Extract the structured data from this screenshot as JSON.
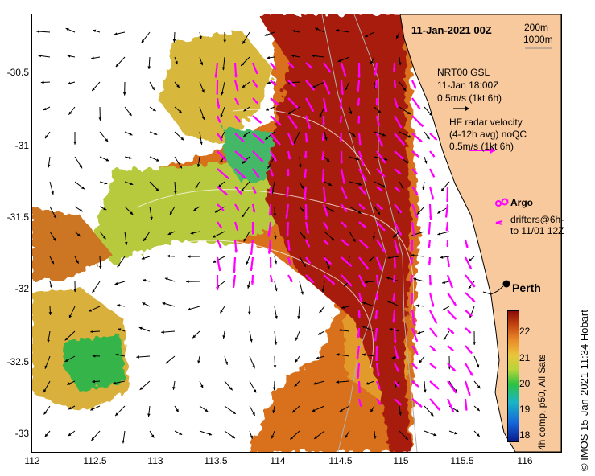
{
  "date_label": "11-Jan-2021 00Z",
  "isobath_legend": [
    "200m",
    "1000m"
  ],
  "gsl_legend": [
    "NRT00 GSL",
    "11-Jan 18:00Z",
    "0.5m/s (1kt 6h)"
  ],
  "hf_legend": [
    "HF radar velocity",
    "(4-12h avg) noQC",
    "0.5m/s (1kt 6h)"
  ],
  "argo_label": "Argo",
  "drifter_legend": [
    "drifters@6h-",
    "to 11/01 12Z"
  ],
  "city_label": "Perth",
  "y_ticks": [
    "-30.5",
    "-31",
    "-31.5",
    "-32",
    "-32.5",
    "-33"
  ],
  "x_ticks": [
    "112",
    "112.5",
    "113",
    "113.5",
    "114",
    "114.5",
    "115",
    "115.5",
    "116"
  ],
  "colorbar_ticks": [
    "22",
    "21",
    "20",
    "19",
    "18"
  ],
  "colorbar_label": "4h comp, p50, All Sats",
  "credit": "© IMOS 15-Jan-2021 11:34 Hobart",
  "colors": {
    "land": "#f8c99c",
    "sst_warm": "#a81c0b",
    "hf_arrow": "#ff00ff",
    "gsl_arrow": "#000000",
    "isobath": "#b0b0b0"
  },
  "map_data": {
    "lon_range": [
      112,
      116.3
    ],
    "lat_range": [
      -33.2,
      -30.1
    ],
    "perth": {
      "lon": 115.86,
      "lat": -31.95
    },
    "colorbar_range": [
      17.8,
      22.6
    ]
  }
}
